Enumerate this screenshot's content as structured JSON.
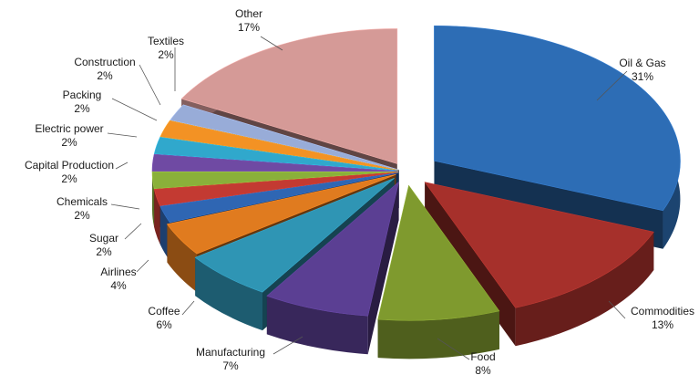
{
  "chart_data": {
    "type": "pie",
    "title": "",
    "style": "3d-exploded",
    "unit": "%",
    "slices": [
      {
        "name": "Oil & Gas",
        "value": 31,
        "label": "31%",
        "color": "#2d6db5"
      },
      {
        "name": "Commodities",
        "value": 13,
        "label": "13%",
        "color": "#a6302b"
      },
      {
        "name": "Food",
        "value": 8,
        "label": "8%",
        "color": "#7f9a2e"
      },
      {
        "name": "Manufacturing",
        "value": 7,
        "label": "7%",
        "color": "#5b3f93"
      },
      {
        "name": "Coffee",
        "value": 6,
        "label": "6%",
        "color": "#2f95b4"
      },
      {
        "name": "Airlines",
        "value": 4,
        "label": "4%",
        "color": "#e07b1f"
      },
      {
        "name": "Sugar",
        "value": 2,
        "label": "2%",
        "color": "#2f66b3"
      },
      {
        "name": "Chemicals",
        "value": 2,
        "label": "2%",
        "color": "#c33a32"
      },
      {
        "name": "Capital Production",
        "value": 2,
        "label": "2%",
        "color": "#8ab03a"
      },
      {
        "name": "Electric power",
        "value": 2,
        "label": "2%",
        "color": "#6f4aa3"
      },
      {
        "name": "Packing",
        "value": 2,
        "label": "2%",
        "color": "#30a8cc"
      },
      {
        "name": "Construction",
        "value": 2,
        "label": "2%",
        "color": "#f39224"
      },
      {
        "name": "Textiles",
        "value": 2,
        "label": "2%",
        "color": "#98acd8"
      },
      {
        "name": "Other",
        "value": 17,
        "label": "17%",
        "color": "#d59a97"
      }
    ]
  }
}
